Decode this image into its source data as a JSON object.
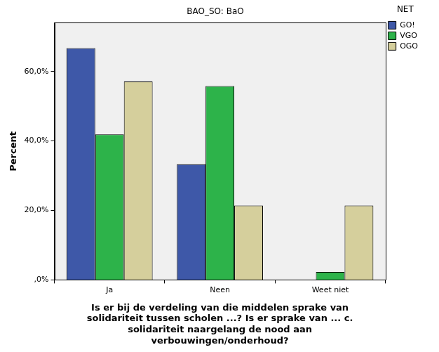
{
  "chart_data": {
    "type": "bar",
    "title": "BAO_SO: BaO",
    "legend_title": "NET",
    "x_label": [
      "Is er bij de verdeling van die middelen sprake van",
      "solidariteit tussen scholen ...? Is er sprake van ... c.",
      "solidariteit naargelang de nood aan",
      "verbouwingen/onderhoud?"
    ],
    "y_label": "Percent",
    "categories": [
      "Ja",
      "Neen",
      "Weet niet"
    ],
    "series": [
      {
        "name": "GO!",
        "color": "#3e58a8",
        "values": [
          66.7,
          33.3,
          null
        ]
      },
      {
        "name": "VGO",
        "color": "#2db34a",
        "values": [
          41.9,
          55.8,
          2.3
        ]
      },
      {
        "name": "OGO",
        "color": "#d5cf9c",
        "values": [
          57.1,
          21.4,
          21.4
        ]
      }
    ],
    "ylim": [
      0,
      74
    ],
    "yticks": [
      {
        "value": 0,
        "label": ",0%"
      },
      {
        "value": 20,
        "label": "20,0%"
      },
      {
        "value": 40,
        "label": "40,0%"
      },
      {
        "value": 60,
        "label": "60,0%"
      }
    ],
    "grid": false,
    "legend": "right"
  }
}
